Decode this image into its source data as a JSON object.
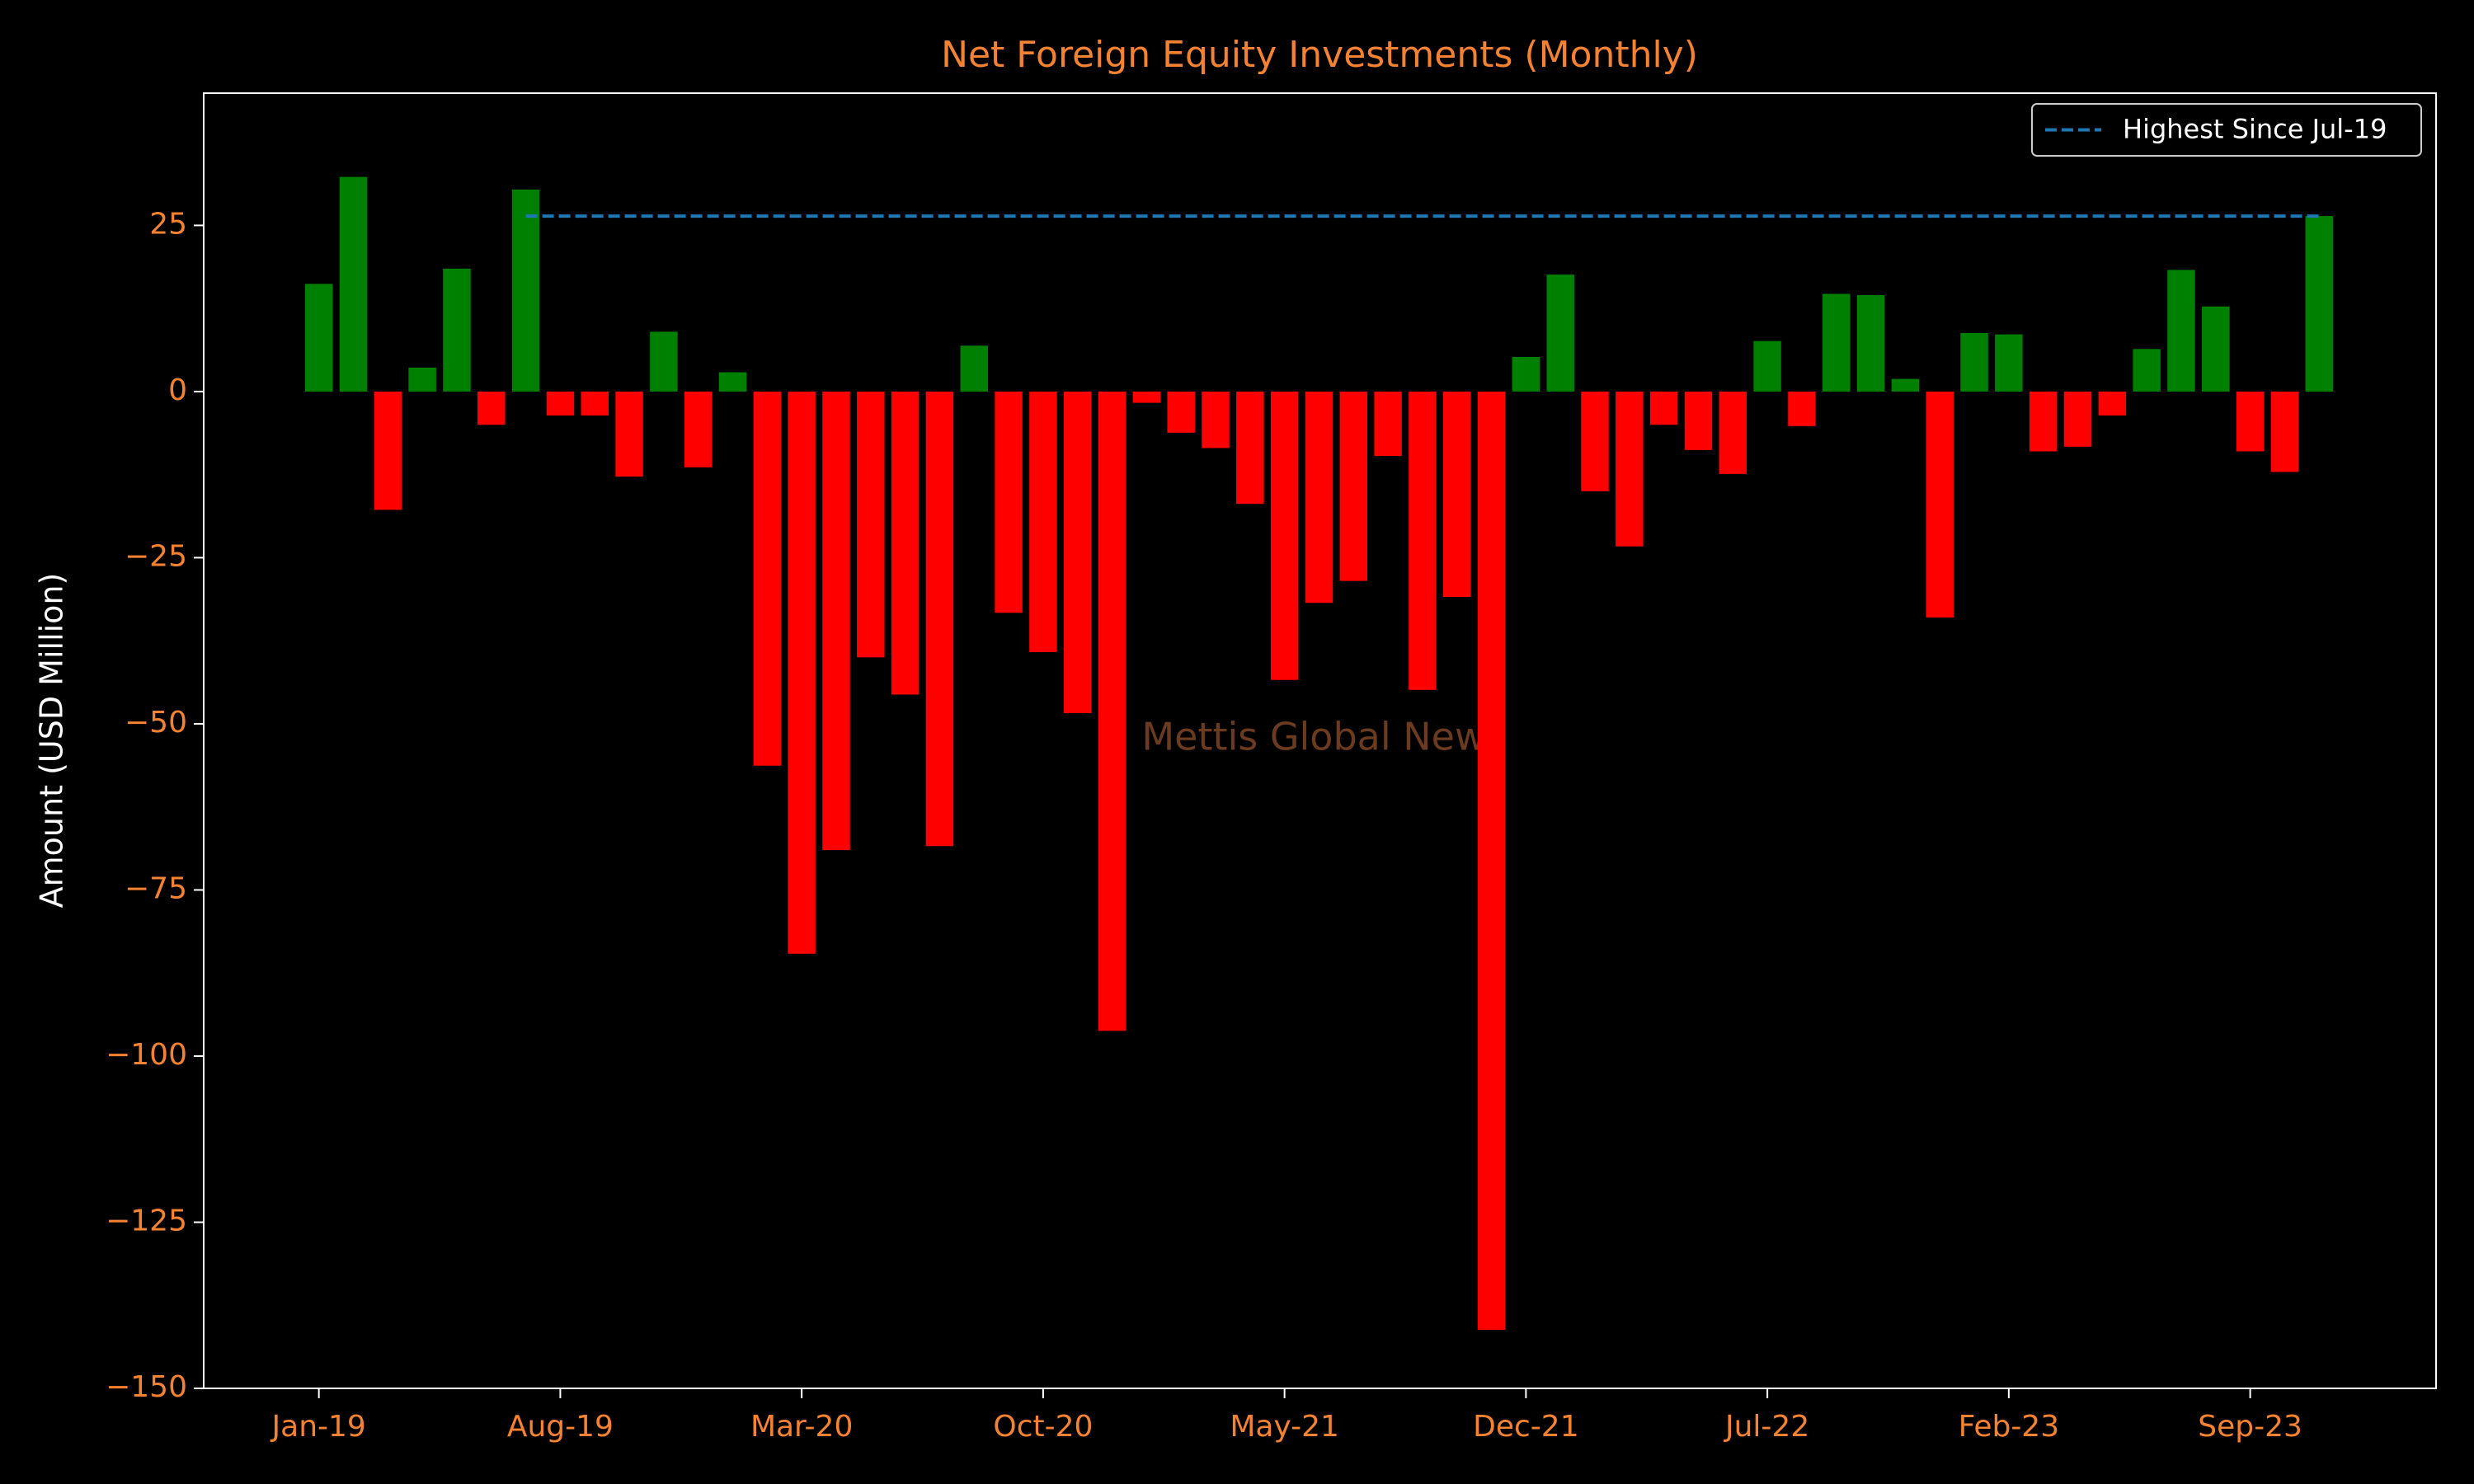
{
  "chart_data": {
    "type": "bar",
    "title": "Net Foreign Equity Investments (Monthly)",
    "y_label": "Amount (USD Million)",
    "watermark": "Mettis Global News",
    "categories": [
      "Jan-19",
      null,
      null,
      null,
      null,
      null,
      null,
      "Aug-19",
      null,
      null,
      null,
      null,
      null,
      null,
      "Mar-20",
      null,
      null,
      null,
      null,
      null,
      null,
      "Oct-20",
      null,
      null,
      null,
      null,
      null,
      null,
      "May-21",
      null,
      null,
      null,
      null,
      null,
      null,
      "Dec-21",
      null,
      null,
      null,
      null,
      null,
      null,
      "Jul-22",
      null,
      null,
      null,
      null,
      null,
      null,
      "Feb-23",
      null,
      null,
      null,
      null,
      null,
      null,
      "Sep-23",
      null,
      null
    ],
    "values": [
      16.2,
      32.3,
      -17.8,
      3.6,
      18.5,
      -5,
      30.4,
      -3.6,
      -3.6,
      -12.8,
      9,
      -11.4,
      2.9,
      -56.3,
      -84.6,
      -69,
      -40,
      -45.6,
      -68.4,
      6.9,
      -33.3,
      -39.2,
      -48.4,
      -96.2,
      -1.7,
      -6.2,
      -8.5,
      -16.9,
      -43.4,
      -31.8,
      -28.5,
      -9.7,
      -44.9,
      -30.9,
      -141.2,
      5.2,
      17.6,
      -15,
      -23.3,
      -5,
      -8.8,
      -12.4,
      7.6,
      -5.2,
      14.7,
      14.5,
      1.9,
      -34,
      8.8,
      8.6,
      -9,
      -8.3,
      -3.6,
      6.4,
      18.3,
      12.8,
      -9,
      -12.1,
      26.4
    ],
    "colors": {
      "positive": "#008000",
      "negative": "#ff0000"
    },
    "reference_line": {
      "name": "Highest Since Jul-19",
      "value": 26.4,
      "color": "#1f77b4",
      "x_start": 6,
      "x_end": 58
    },
    "ylim": [
      -150,
      44.9
    ],
    "yticks": [
      {
        "value": -150,
        "label": "−150"
      },
      {
        "value": -125,
        "label": "−125"
      },
      {
        "value": -100,
        "label": "−100"
      },
      {
        "value": -75,
        "label": "−75"
      },
      {
        "value": -50,
        "label": "−50"
      },
      {
        "value": -25,
        "label": "−25"
      },
      0,
      25
    ],
    "legend": "upper right"
  }
}
